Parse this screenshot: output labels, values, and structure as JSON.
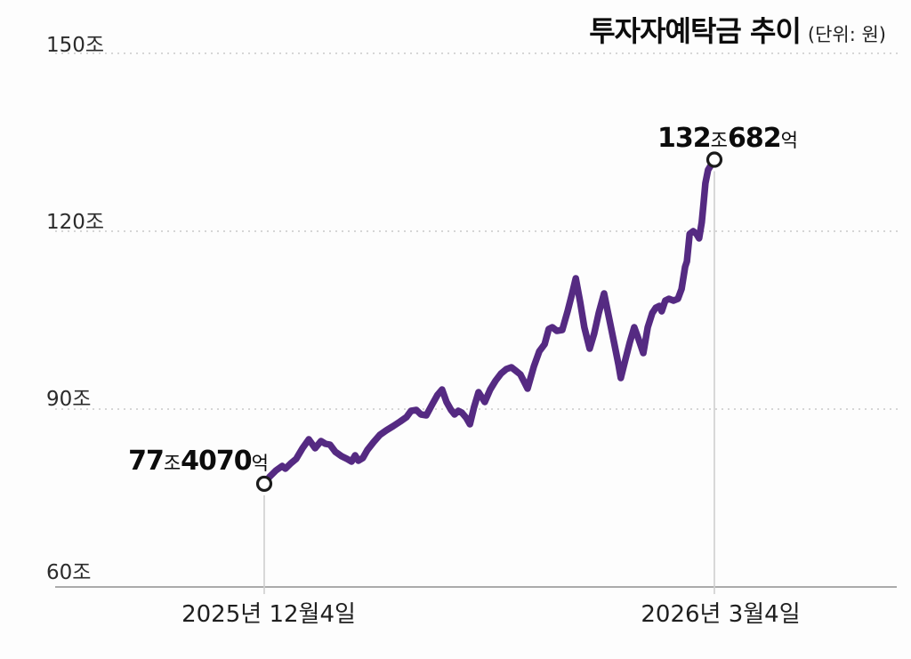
{
  "title": {
    "text": "투자자예탁금 추이",
    "unit": "(단위: 원)"
  },
  "colors": {
    "line": "#552a82",
    "grid": "#c9c9c9",
    "axis": "#ababab",
    "ref_line": "#cfcfcf",
    "marker_stroke": "#1b1b1b",
    "marker_fill": "#ffffff"
  },
  "chart_data": {
    "type": "line",
    "title": "투자자예탁금 추이",
    "unit_label": "(단위: 원)",
    "series_name": "투자자예탁금",
    "ylim": [
      60,
      150
    ],
    "grid": "dotted horizontal",
    "legend": "none",
    "y_ticks": [
      {
        "label": "150조",
        "value": 150
      },
      {
        "label": "120조",
        "value": 120
      },
      {
        "label": "90조",
        "value": 90
      },
      {
        "label": "60조",
        "value": 60
      }
    ],
    "x_ticks": [
      {
        "label": "2025년 12월4일",
        "position": 0
      },
      {
        "label": "2026년 3월4일",
        "position": 1
      }
    ],
    "annotations": [
      {
        "position": "start",
        "parts": [
          "77",
          "조",
          "4070",
          "억"
        ],
        "value_trillion_won": 77.407
      },
      {
        "position": "end",
        "parts": [
          "132",
          "조",
          "682",
          "억"
        ],
        "value_trillion_won": 132.0682
      }
    ],
    "series": [
      {
        "name": "투자자예탁금",
        "x_unit": "fraction of span 2025-12-04 → 2026-03-04",
        "y_unit": "조 원 (trillion KRW)",
        "points": [
          [
            0,
            77.41
          ],
          [
            0.012,
            78.6
          ],
          [
            0.026,
            79.65
          ],
          [
            0.04,
            80.4
          ],
          [
            0.047,
            79.95
          ],
          [
            0.059,
            80.85
          ],
          [
            0.071,
            81.6
          ],
          [
            0.085,
            83.4
          ],
          [
            0.099,
            84.9
          ],
          [
            0.113,
            83.4
          ],
          [
            0.126,
            84.6
          ],
          [
            0.136,
            84.15
          ],
          [
            0.146,
            84.0
          ],
          [
            0.158,
            82.8
          ],
          [
            0.172,
            82.05
          ],
          [
            0.184,
            81.6
          ],
          [
            0.194,
            81.15
          ],
          [
            0.202,
            82.2
          ],
          [
            0.209,
            81.3
          ],
          [
            0.219,
            81.75
          ],
          [
            0.229,
            83.1
          ],
          [
            0.243,
            84.45
          ],
          [
            0.257,
            85.65
          ],
          [
            0.271,
            86.4
          ],
          [
            0.287,
            87.15
          ],
          [
            0.302,
            87.9
          ],
          [
            0.316,
            88.65
          ],
          [
            0.326,
            89.7
          ],
          [
            0.338,
            89.85
          ],
          [
            0.348,
            89.1
          ],
          [
            0.36,
            88.95
          ],
          [
            0.374,
            90.9
          ],
          [
            0.385,
            92.4
          ],
          [
            0.395,
            93.3
          ],
          [
            0.405,
            91.2
          ],
          [
            0.415,
            89.85
          ],
          [
            0.423,
            89.1
          ],
          [
            0.431,
            89.7
          ],
          [
            0.439,
            89.4
          ],
          [
            0.449,
            88.5
          ],
          [
            0.457,
            87.45
          ],
          [
            0.466,
            90.3
          ],
          [
            0.476,
            92.85
          ],
          [
            0.49,
            91.2
          ],
          [
            0.502,
            93.3
          ],
          [
            0.514,
            94.8
          ],
          [
            0.526,
            96.0
          ],
          [
            0.538,
            96.75
          ],
          [
            0.549,
            97.05
          ],
          [
            0.559,
            96.45
          ],
          [
            0.569,
            95.85
          ],
          [
            0.577,
            94.65
          ],
          [
            0.585,
            93.45
          ],
          [
            0.599,
            97.2
          ],
          [
            0.611,
            99.75
          ],
          [
            0.623,
            100.95
          ],
          [
            0.632,
            103.5
          ],
          [
            0.64,
            103.8
          ],
          [
            0.65,
            103.2
          ],
          [
            0.662,
            103.35
          ],
          [
            0.674,
            106.5
          ],
          [
            0.684,
            109.5
          ],
          [
            0.692,
            112.05
          ],
          [
            0.702,
            108.0
          ],
          [
            0.711,
            103.8
          ],
          [
            0.723,
            100.2
          ],
          [
            0.733,
            102.75
          ],
          [
            0.743,
            106.2
          ],
          [
            0.755,
            109.5
          ],
          [
            0.765,
            105.75
          ],
          [
            0.777,
            101.25
          ],
          [
            0.787,
            97.5
          ],
          [
            0.792,
            95.25
          ],
          [
            0.802,
            98.25
          ],
          [
            0.812,
            101.25
          ],
          [
            0.822,
            103.8
          ],
          [
            0.832,
            101.7
          ],
          [
            0.842,
            99.45
          ],
          [
            0.852,
            103.8
          ],
          [
            0.862,
            106.2
          ],
          [
            0.87,
            107.1
          ],
          [
            0.878,
            107.4
          ],
          [
            0.883,
            106.5
          ],
          [
            0.891,
            108.3
          ],
          [
            0.899,
            108.6
          ],
          [
            0.909,
            108.3
          ],
          [
            0.919,
            108.6
          ],
          [
            0.927,
            110.25
          ],
          [
            0.935,
            114.0
          ],
          [
            0.939,
            114.9
          ],
          [
            0.945,
            119.55
          ],
          [
            0.953,
            120.0
          ],
          [
            0.96,
            119.55
          ],
          [
            0.966,
            118.8
          ],
          [
            0.972,
            121.5
          ],
          [
            0.976,
            124.8
          ],
          [
            0.98,
            128.1
          ],
          [
            0.986,
            130.35
          ],
          [
            0.992,
            131.1
          ],
          [
            1,
            132.07
          ]
        ]
      }
    ]
  }
}
